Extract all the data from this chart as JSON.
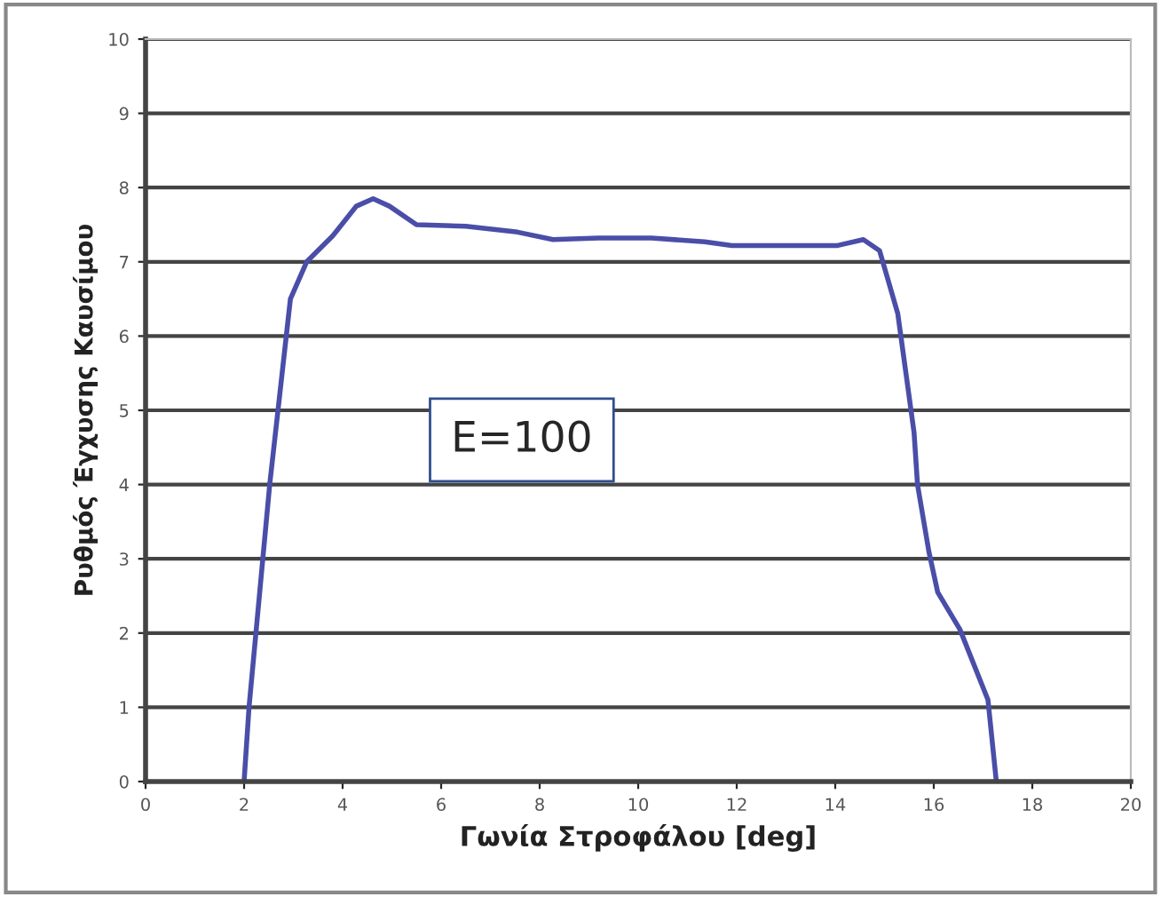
{
  "chart_data": {
    "type": "line",
    "xlabel": "Γωνία Στροφάλου [deg]",
    "ylabel": "Ρυθμός Έγχυσης Καυσίμου",
    "annotations": [
      "E=100"
    ],
    "x": [
      2.0,
      2.1,
      2.52,
      2.94,
      3.27,
      3.8,
      4.28,
      4.62,
      4.95,
      5.5,
      6.5,
      7.55,
      8.27,
      9.2,
      10.27,
      11.35,
      11.9,
      14.05,
      14.57,
      14.9,
      15.27,
      15.6,
      15.67,
      15.9,
      16.08,
      16.53,
      17.1,
      17.27
    ],
    "series": [
      {
        "color": "#4a4ea8",
        "values": [
          0,
          1,
          4,
          6.5,
          7.0,
          7.35,
          7.75,
          7.85,
          7.75,
          7.5,
          7.48,
          7.4,
          7.3,
          7.32,
          7.32,
          7.27,
          7.22,
          7.22,
          7.3,
          7.15,
          6.3,
          4.7,
          4,
          3.1,
          2.55,
          2.05,
          1.1,
          0
        ]
      }
    ],
    "xlim": [
      0,
      20
    ],
    "xticks": [
      0,
      2,
      4,
      6,
      8,
      10,
      12,
      14,
      16,
      18,
      20
    ],
    "ylim": [
      0,
      10
    ],
    "yticks": [
      0,
      1,
      2,
      3,
      4,
      5,
      6,
      7,
      8,
      9,
      10
    ],
    "grid": "y",
    "legend": false
  }
}
